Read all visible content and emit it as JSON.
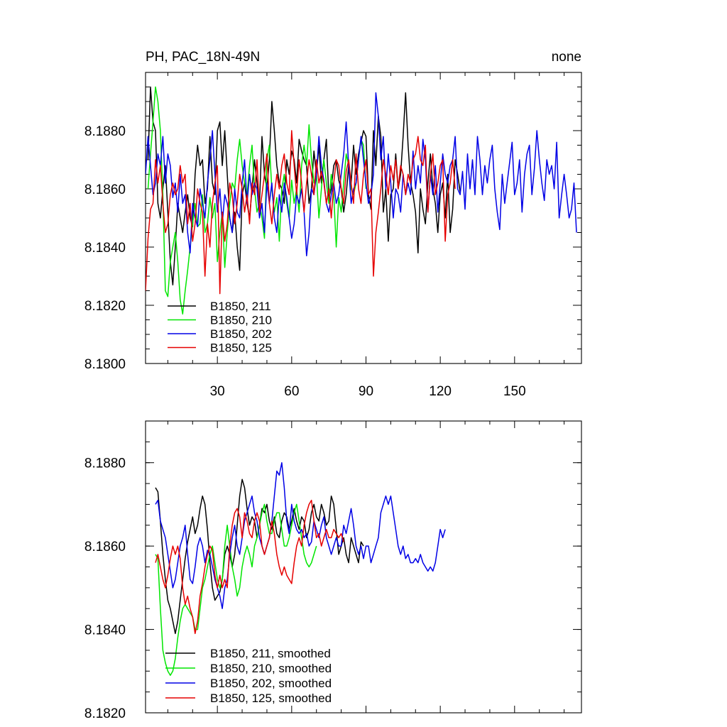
{
  "figure": {
    "title_left": "PH, PAC_18N-49N",
    "title_right": "none"
  },
  "chart_data": [
    {
      "type": "line",
      "panel": "top",
      "title": "PH, PAC_18N-49N",
      "title_right": "none",
      "xlabel": "",
      "ylabel": "",
      "xlim": [
        1,
        177
      ],
      "ylim": [
        8.18,
        8.19
      ],
      "xticks": [
        30,
        60,
        90,
        120,
        150
      ],
      "xtick_labels": [
        "30",
        "60",
        "90",
        "120",
        "150"
      ],
      "yticks": [
        8.18,
        8.182,
        8.184,
        8.186,
        8.188
      ],
      "ytick_labels": [
        "8.1800",
        "8.1820",
        "8.1840",
        "8.1860",
        "8.1880"
      ],
      "legend_position": "lower-left",
      "series": [
        {
          "name": "B1850, 211",
          "color": "#000000",
          "x_start": 2,
          "values": [
            8.187,
            8.1895,
            8.1883,
            8.188,
            8.1855,
            8.185,
            8.186,
            8.1868,
            8.1852,
            8.1835,
            8.1827,
            8.184,
            8.1855,
            8.185,
            8.1845,
            8.1852,
            8.1858,
            8.185,
            8.1847,
            8.1865,
            8.1875,
            8.1868,
            8.187,
            8.1855,
            8.186,
            8.1878,
            8.1862,
            8.1858,
            8.188,
            8.1883,
            8.1868,
            8.188,
            8.1865,
            8.185,
            8.1845,
            8.1852,
            8.184,
            8.1832,
            8.1858,
            8.1862,
            8.1855,
            8.185,
            8.186,
            8.187,
            8.1862,
            8.1855,
            8.1878,
            8.1865,
            8.186,
            8.187,
            8.189,
            8.188,
            8.1868,
            8.1862,
            8.186,
            8.1855,
            8.187,
            8.1865,
            8.1873,
            8.187,
            8.1862,
            8.1877,
            8.1873,
            8.187,
            8.1868,
            8.1855,
            8.186,
            8.1873,
            8.1865,
            8.1875,
            8.1862,
            8.187,
            8.1877,
            8.1857,
            8.186,
            8.1868,
            8.187,
            8.1863,
            8.186,
            8.1852,
            8.1858,
            8.1868,
            8.1862,
            8.1875,
            8.1865,
            8.1872,
            8.1876,
            8.188,
            8.1878,
            8.1858,
            8.1853,
            8.188,
            8.1868,
            8.1885,
            8.1878,
            8.1852,
            8.186,
            8.1842,
            8.1858,
            8.186,
            8.1872,
            8.186,
            8.1865,
            8.1878,
            8.1893,
            8.1875,
            8.1862,
            8.1858,
            8.1852,
            8.1838,
            8.186,
            8.1853,
            8.1848,
            8.1862,
            8.1872,
            8.186,
            8.1855,
            8.1845,
            8.1858,
            8.1862,
            8.185,
            8.1865,
            8.1845,
            8.1853,
            8.187,
            8.1865,
            8.1859
          ]
        },
        {
          "name": "B1850, 210",
          "color": "#00e600",
          "x_start": 2,
          "values": [
            8.186,
            8.1872,
            8.1883,
            8.1895,
            8.189,
            8.188,
            8.1858,
            8.1825,
            8.1823,
            8.1835,
            8.184,
            8.1845,
            8.1835,
            8.1822,
            8.1817,
            8.1825,
            8.1832,
            8.184,
            8.1848,
            8.1855,
            8.1847,
            8.1848,
            8.1858,
            8.1845,
            8.1848,
            8.1857,
            8.185,
            8.1855,
            8.1835,
            8.1845,
            8.1852,
            8.1833,
            8.1845,
            8.1855,
            8.1862,
            8.186,
            8.187,
            8.1877,
            8.1868,
            8.1862,
            8.1858,
            8.1868,
            8.1875,
            8.186,
            8.1852,
            8.1855,
            8.185,
            8.1843,
            8.187,
            8.1875,
            8.186,
            8.1852,
            8.1857,
            8.1842,
            8.186,
            8.1865,
            8.1855,
            8.185,
            8.1863,
            8.1855,
            8.186,
            8.1852,
            8.1868,
            8.1875,
            8.1868,
            8.1882,
            8.187,
            8.1862,
            8.1865,
            8.185,
            8.186,
            8.187,
            8.1862,
            8.1855,
            8.1865,
            8.1858,
            8.184,
            8.1857,
            8.1852,
            8.1862,
            8.1872,
            8.1868,
            8.186,
            8.1858,
            8.1862,
            8.187,
            8.1877,
            8.1875,
            8.186
          ]
        },
        {
          "name": "B1850, 202",
          "color": "#0000e6",
          "x_start": 1,
          "values": [
            8.1865,
            8.1878,
            8.1868,
            8.1858,
            8.1862,
            8.1872,
            8.1868,
            8.1878,
            8.1862,
            8.1872,
            8.1868,
            8.1857,
            8.1862,
            8.1852,
            8.1865,
            8.1855,
            8.1858,
            8.1845,
            8.1838,
            8.1855,
            8.185,
            8.1847,
            8.186,
            8.1855,
            8.185,
            8.1862,
            8.187,
            8.188,
            8.1865,
            8.1852,
            8.186,
            8.1848,
            8.1858,
            8.1855,
            8.185,
            8.1845,
            8.186,
            8.1852,
            8.185,
            8.1862,
            8.187,
            8.1855,
            8.1865,
            8.1858,
            8.1862,
            8.186,
            8.185,
            8.1855,
            8.1845,
            8.1862,
            8.1855,
            8.1862,
            8.185,
            8.1845,
            8.1858,
            8.1852,
            8.1862,
            8.1857,
            8.185,
            8.1843,
            8.1848,
            8.1858,
            8.1855,
            8.186,
            8.1852,
            8.1837,
            8.1845,
            8.186,
            8.1858,
            8.1865,
            8.1878,
            8.1868,
            8.1863,
            8.1855,
            8.1852,
            8.1858,
            8.1862,
            8.1855,
            8.1858,
            8.1865,
            8.1872,
            8.1883,
            8.1868,
            8.1855,
            8.186,
            8.1862,
            8.187,
            8.1878,
            8.187,
            8.1862,
            8.1855,
            8.1858,
            8.1865,
            8.1893,
            8.1885,
            8.187,
            8.1878,
            8.186,
            8.1872,
            8.1862,
            8.185,
            8.186,
            8.1858,
            8.1852,
            8.1865,
            8.1858,
            8.1862,
            8.1858,
            8.1873,
            8.186,
            8.1868,
            8.1862,
            8.1877,
            8.187,
            8.1852,
            8.1865,
            8.1858,
            8.1868,
            8.1852,
            8.1862,
            8.1872,
            8.1865,
            8.1862,
            8.1868,
            8.187,
            8.1878,
            8.186,
            8.1858,
            8.1866,
            8.1853,
            8.1872,
            8.186,
            8.187,
            8.1858,
            8.1878,
            8.187,
            8.1858,
            8.1868,
            8.1862,
            8.187,
            8.1875,
            8.186,
            8.1852,
            8.1846,
            8.1865,
            8.1855,
            8.1862,
            8.1869,
            8.1876,
            8.1858,
            8.1862,
            8.187,
            8.1852,
            8.1865,
            8.1872,
            8.1875,
            8.1858,
            8.1867,
            8.188,
            8.187,
            8.1862,
            8.1856,
            8.187,
            8.1865,
            8.1868,
            8.186,
            8.1876,
            8.185,
            8.1858,
            8.1865,
            8.1858,
            8.185,
            8.1853,
            8.1862,
            8.1845
          ]
        },
        {
          "name": "B1850, 125",
          "color": "#e60000",
          "x_start": 1,
          "values": [
            8.1825,
            8.1843,
            8.1853,
            8.1855,
            8.187,
            8.1862,
            8.1868,
            8.1855,
            8.1845,
            8.1848,
            8.1858,
            8.1862,
            8.1858,
            8.186,
            8.1868,
            8.1862,
            8.1865,
            8.1848,
            8.1855,
            8.1842,
            8.1848,
            8.186,
            8.1855,
            8.1852,
            8.183,
            8.1848,
            8.184,
            8.1855,
            8.1862,
            8.1868,
            8.1824,
            8.1852,
            8.1842,
            8.1848,
            8.1862,
            8.1858,
            8.1848,
            8.1855,
            8.1865,
            8.186,
            8.1852,
            8.1858,
            8.1848,
            8.1862,
            8.1858,
            8.187,
            8.1852,
            8.1858,
            8.1865,
            8.1872,
            8.1855,
            8.1848,
            8.1858,
            8.1865,
            8.186,
            8.1868,
            8.1872,
            8.1862,
            8.1858,
            8.188,
            8.1868,
            8.1858,
            8.187,
            8.1862,
            8.1852,
            8.1862,
            8.187,
            8.1865,
            8.1858,
            8.187,
            8.1862,
            8.1866,
            8.1862,
            8.1855,
            8.186,
            8.185,
            8.1862,
            8.187,
            8.1868,
            8.186,
            8.1855,
            8.1866,
            8.187,
            8.1862,
            8.1855,
            8.1872,
            8.186,
            8.1855,
            8.1865,
            8.187,
            8.1858,
            8.186,
            8.183,
            8.1845,
            8.1852,
            8.186,
            8.187,
            8.1865,
            8.1858,
            8.1868,
            8.1863,
            8.187,
            8.186,
            8.1868,
            8.1865,
            8.1858,
            8.1865,
            8.1862,
            8.187,
            8.1872,
            8.1878,
            8.187,
            8.1868,
            8.1875,
            8.1852,
            8.1865,
            8.1872,
            8.1858,
            8.1862,
            8.1868,
            8.187,
            8.1842,
            8.1858,
            8.1862,
            8.187,
            8.186
          ]
        }
      ]
    },
    {
      "type": "line",
      "panel": "bottom",
      "title": "",
      "xlabel": "",
      "ylabel": "",
      "xlim": [
        1,
        177
      ],
      "ylim": [
        8.182,
        8.189
      ],
      "xticks": [
        30,
        60,
        90,
        120,
        150
      ],
      "xtick_labels": [],
      "yticks": [
        8.182,
        8.184,
        8.186,
        8.188
      ],
      "ytick_labels": [
        "8.1820",
        "8.1840",
        "8.1860",
        "8.1880"
      ],
      "legend_position": "lower-left",
      "series": [
        {
          "name": "B1850, 211, smoothed",
          "color": "#000000",
          "x_start": 5,
          "values": [
            8.1874,
            8.1873,
            8.1866,
            8.1858,
            8.1852,
            8.1847,
            8.1845,
            8.1842,
            8.1839,
            8.1842,
            8.1847,
            8.1852,
            8.1857,
            8.1861,
            8.1864,
            8.1867,
            8.1863,
            8.1865,
            8.1869,
            8.1872,
            8.187,
            8.1864,
            8.1856,
            8.185,
            8.1847,
            8.1848,
            8.1849,
            8.1852,
            8.1858,
            8.186,
            8.1858,
            8.1855,
            8.1858,
            8.1865,
            8.1872,
            8.1876,
            8.1874,
            8.1869,
            8.1865,
            8.1867,
            8.1866,
            8.1862,
            8.1865,
            8.1869,
            8.1868,
            8.187,
            8.1866,
            8.1864,
            8.1867,
            8.1863,
            8.1862,
            8.1866,
            8.1868,
            8.1867,
            8.1864,
            8.1866,
            8.1869,
            8.1866,
            8.1864,
            8.1867,
            8.1866,
            8.1862,
            8.1864,
            8.1868,
            8.187,
            8.1867,
            8.1866,
            8.187,
            8.1868,
            8.1865,
            8.1866,
            8.1872,
            8.187,
            8.1864,
            8.1858,
            8.186,
            8.1862,
            8.1858,
            8.1856,
            8.1862,
            8.186,
            8.1858,
            8.1856,
            8.1861,
            8.186
          ]
        },
        {
          "name": "B1850, 210, smoothed",
          "color": "#00e600",
          "x_start": 5,
          "values": [
            8.1858,
            8.1857,
            8.1845,
            8.1835,
            8.1832,
            8.183,
            8.1829,
            8.183,
            8.1833,
            8.1838,
            8.1842,
            8.1845,
            8.1846,
            8.1845,
            8.1844,
            8.1843,
            8.184,
            8.184,
            8.1845,
            8.185,
            8.1852,
            8.1855,
            8.1858,
            8.186,
            8.1856,
            8.1852,
            8.185,
            8.1852,
            8.186,
            8.1865,
            8.186,
            8.1855,
            8.1852,
            8.1848,
            8.185,
            8.1855,
            8.1858,
            8.186,
            8.1858,
            8.1855,
            8.186,
            8.1862,
            8.1865,
            8.1868,
            8.187,
            8.1866,
            8.1863,
            8.1863,
            8.1866,
            8.1868,
            8.1868,
            8.1864,
            8.186,
            8.186,
            8.1862,
            8.1865,
            8.1868,
            8.187,
            8.1866,
            8.1862,
            8.1858,
            8.1856,
            8.1855,
            8.1856,
            8.1858,
            8.186
          ]
        },
        {
          "name": "B1850, 202, smoothed",
          "color": "#0000e6",
          "x_start": 5,
          "values": [
            8.187,
            8.1871,
            8.1866,
            8.1864,
            8.1862,
            8.1858,
            8.1854,
            8.185,
            8.1852,
            8.1856,
            8.186,
            8.1862,
            8.1865,
            8.1858,
            8.1852,
            8.1851,
            8.1855,
            8.186,
            8.1862,
            8.186,
            8.1856,
            8.1859,
            8.1858,
            8.1855,
            8.1852,
            8.185,
            8.1848,
            8.1845,
            8.185,
            8.1852,
            8.1858,
            8.1862,
            8.1865,
            8.186,
            8.1858,
            8.1862,
            8.1866,
            8.1868,
            8.187,
            8.1872,
            8.1868,
            8.1866,
            8.1862,
            8.186,
            8.1858,
            8.186,
            8.1862,
            8.1866,
            8.1872,
            8.1878,
            8.1877,
            8.188,
            8.1874,
            8.1866,
            8.1863,
            8.187,
            8.1866,
            8.1864,
            8.1863,
            8.1864,
            8.1862,
            8.1863,
            8.186,
            8.1861,
            8.1866,
            8.1864,
            8.1862,
            8.1865,
            8.1867,
            8.1862,
            8.186,
            8.1858,
            8.186,
            8.1862,
            8.186,
            8.186,
            8.1865,
            8.1863,
            8.1866,
            8.1869,
            8.1865,
            8.186,
            8.1858,
            8.186,
            8.1857,
            8.186,
            8.186,
            8.1856,
            8.1858,
            8.186,
            8.1862,
            8.1868,
            8.187,
            8.1872,
            8.187,
            8.1872,
            8.1868,
            8.1864,
            8.186,
            8.1858,
            8.186,
            8.1857,
            8.1858,
            8.1856,
            8.1856,
            8.1857,
            8.1856,
            8.1858,
            8.1856,
            8.1855,
            8.1854,
            8.1855,
            8.1854,
            8.1856,
            8.186,
            8.1864,
            8.1862,
            8.1864
          ]
        },
        {
          "name": "B1850, 125, smoothed",
          "color": "#e60000",
          "x_start": 5,
          "values": [
            8.1856,
            8.1858,
            8.1855,
            8.1852,
            8.185,
            8.1853,
            8.1857,
            8.186,
            8.1858,
            8.186,
            8.1857,
            8.185,
            8.1846,
            8.1848,
            8.1845,
            8.1843,
            8.1839,
            8.1842,
            8.1848,
            8.1851,
            8.1855,
            8.1858,
            8.186,
            8.1859,
            8.1853,
            8.185,
            8.1853,
            8.185,
            8.1852,
            8.185,
            8.186,
            8.1865,
            8.1868,
            8.1869,
            8.1867,
            8.1862,
            8.1868,
            8.1866,
            8.1863,
            8.1862,
            8.1866,
            8.1868,
            8.1866,
            8.186,
            8.1858,
            8.186,
            8.1862,
            8.1866,
            8.1863,
            8.1858,
            8.1855,
            8.1853,
            8.1855,
            8.1853,
            8.1852,
            8.1851,
            8.1856,
            8.186,
            8.1862,
            8.186,
            8.1865,
            8.1868,
            8.187,
            8.1871,
            8.1866,
            8.1862,
            8.1863,
            8.186,
            8.1862,
            8.1864,
            8.1862,
            8.1862,
            8.1864,
            8.1863,
            8.1862,
            8.1863,
            8.1861
          ]
        }
      ]
    }
  ]
}
